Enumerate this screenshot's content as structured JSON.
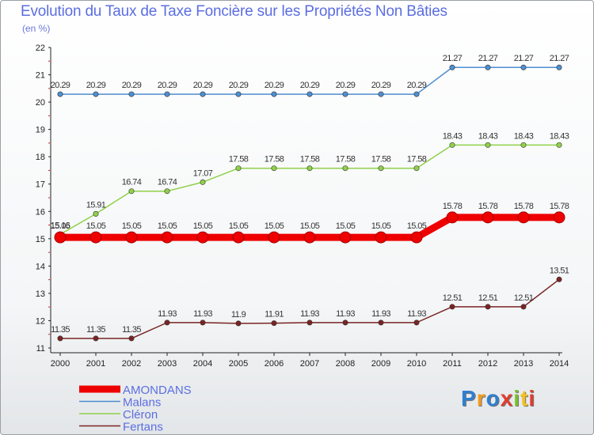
{
  "title": "Evolution du Taux de Taxe Foncière sur les Propriétés Non Bâties",
  "subtitle": "(en %)",
  "brand": {
    "text": "Proxiti",
    "letter_colors": [
      "#2f7fd0",
      "#f39a1f",
      "#2f7fd0",
      "#e23b2e",
      "#7bbf2a",
      "#f3c01f",
      "#e23b2e"
    ]
  },
  "chart_data": {
    "type": "line",
    "title": "Evolution du Taux de Taxe Foncière sur les Propriétés Non Bâties",
    "ylabel": "(en %)",
    "xlabel": "",
    "ylim": [
      11,
      22
    ],
    "y_ticks": [
      "11",
      "12",
      "13",
      "14",
      "15",
      "16",
      "17",
      "18",
      "19",
      "20",
      "21",
      "22"
    ],
    "x": [
      "2000",
      "2001",
      "2002",
      "2003",
      "2004",
      "2005",
      "2006",
      "2007",
      "2008",
      "2009",
      "2010",
      "2011",
      "2012",
      "2013",
      "2014"
    ],
    "grid": false,
    "legend_position": "bottom-left",
    "series": [
      {
        "name": "AMONDANS",
        "color": "#ee0000",
        "values": [
          15.05,
          15.05,
          15.05,
          15.05,
          15.05,
          15.05,
          15.05,
          15.05,
          15.05,
          15.05,
          15.05,
          15.78,
          15.78,
          15.78,
          15.78
        ],
        "labels": [
          "15.05",
          "15.05",
          "15.05",
          "15.05",
          "15.05",
          "15.05",
          "15.05",
          "15.05",
          "15.05",
          "15.05",
          "15.05",
          "15.78",
          "15.78",
          "15.78",
          "15.78"
        ],
        "emphasis": true
      },
      {
        "name": "Malans",
        "color": "#4d8fd1",
        "values": [
          20.29,
          20.29,
          20.29,
          20.29,
          20.29,
          20.29,
          20.29,
          20.29,
          20.29,
          20.29,
          20.29,
          21.27,
          21.27,
          21.27,
          21.27
        ],
        "labels": [
          "20.29",
          "20.29",
          "20.29",
          "20.29",
          "20.29",
          "20.29",
          "20.29",
          "20.29",
          "20.29",
          "20.29",
          "20.29",
          "21.27",
          "21.27",
          "21.27",
          "21.27"
        ]
      },
      {
        "name": "Cléron",
        "color": "#8fd14a",
        "values": [
          15.16,
          15.91,
          16.74,
          16.74,
          17.07,
          17.58,
          17.58,
          17.58,
          17.58,
          17.58,
          17.58,
          18.43,
          18.43,
          18.43,
          18.43
        ],
        "labels": [
          "15.16",
          "15.91",
          "16.74",
          "16.74",
          "17.07",
          "17.58",
          "17.58",
          "17.58",
          "17.58",
          "17.58",
          "17.58",
          "18.43",
          "18.43",
          "18.43",
          "18.43"
        ]
      },
      {
        "name": "Fertans",
        "color": "#7a2424",
        "values": [
          11.35,
          11.35,
          11.35,
          11.93,
          11.93,
          11.9,
          11.91,
          11.93,
          11.93,
          11.93,
          11.93,
          12.51,
          12.51,
          12.51,
          13.51
        ],
        "labels": [
          "11.35",
          "11.35",
          "11.35",
          "11.93",
          "11.93",
          "11.9",
          "11.91",
          "11.93",
          "11.93",
          "11.93",
          "11.93",
          "12.51",
          "12.51",
          "12.51",
          "13.51"
        ]
      }
    ]
  }
}
